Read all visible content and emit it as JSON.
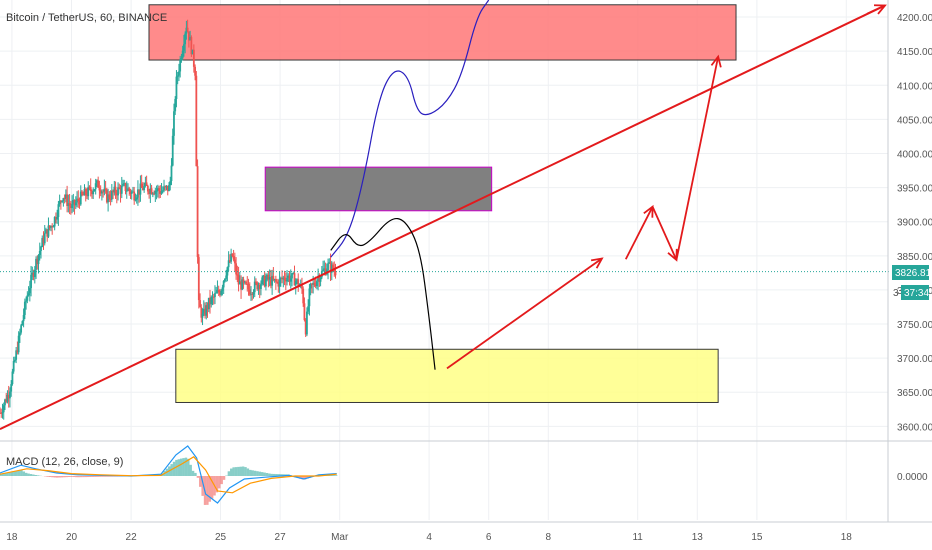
{
  "title": "Bitcoin / TetherUS, 60, BINANCE",
  "macd_label": "MACD (12, 26, close, 9)",
  "price_badge": "3826.81",
  "countdown_badge": "37:34",
  "partial_axis_label": "3",
  "macd_zero_label": "0.0000",
  "colors": {
    "up": "#26a69a",
    "down": "#ef5350",
    "trendline": "#e31a1c",
    "price_line": "#26a69a",
    "macd_line": "#2196f3",
    "signal_line": "#ff9800",
    "red_zone": "#ff7f7f",
    "grey_zone": "#808080",
    "grey_zone_border": "#cc00cc",
    "yellow_zone": "#ffff8d",
    "projection_blue": "#2a1fbf",
    "projection_black": "#000000"
  },
  "chart_data": {
    "type": "candlestick",
    "price_axis": {
      "min": 3580,
      "max": 4225,
      "ticks": [
        3600,
        3650,
        3700,
        3750,
        3800,
        3850,
        3900,
        3950,
        4000,
        4050,
        4100,
        4150,
        4200
      ],
      "tick_labels": [
        "3600.00",
        "3650.00",
        "3700.00",
        "3750.00",
        "3800.00",
        "3850.00",
        "3900.00",
        "3950.00",
        "4000.00",
        "4050.00",
        "4100.00",
        "4150.00",
        "4200.00"
      ]
    },
    "time_axis": {
      "min": 17.6,
      "max": 37.8,
      "labels": [
        {
          "t": 18,
          "label": "18"
        },
        {
          "t": 20,
          "label": "20"
        },
        {
          "t": 22,
          "label": "22"
        },
        {
          "t": 25,
          "label": "25"
        },
        {
          "t": 27,
          "label": "27"
        },
        {
          "t": 29,
          "label": "Mar"
        },
        {
          "t": 32,
          "label": "4"
        },
        {
          "t": 34,
          "label": "6"
        },
        {
          "t": 36,
          "label": "8"
        },
        {
          "t": 39,
          "label": "11"
        },
        {
          "t": 41,
          "label": "13"
        },
        {
          "t": 43,
          "label": "15"
        },
        {
          "t": 46,
          "label": "18"
        }
      ]
    },
    "current_price": 3826.81,
    "price_path": [
      [
        17.6,
        3620
      ],
      [
        17.9,
        3650
      ],
      [
        18.2,
        3720
      ],
      [
        18.5,
        3790
      ],
      [
        18.8,
        3840
      ],
      [
        19.1,
        3880
      ],
      [
        19.4,
        3900
      ],
      [
        19.7,
        3940
      ],
      [
        20.0,
        3920
      ],
      [
        20.3,
        3935
      ],
      [
        20.6,
        3945
      ],
      [
        20.9,
        3955
      ],
      [
        21.2,
        3935
      ],
      [
        21.5,
        3945
      ],
      [
        21.8,
        3950
      ],
      [
        22.1,
        3940
      ],
      [
        22.4,
        3950
      ],
      [
        22.7,
        3948
      ],
      [
        23.0,
        3945
      ],
      [
        23.3,
        3950
      ],
      [
        23.5,
        4100
      ],
      [
        23.7,
        4150
      ],
      [
        23.85,
        4190
      ],
      [
        24.0,
        4160
      ],
      [
        24.15,
        4120
      ],
      [
        24.25,
        3780
      ],
      [
        24.4,
        3760
      ],
      [
        24.6,
        3780
      ],
      [
        24.8,
        3790
      ],
      [
        25.0,
        3800
      ],
      [
        25.2,
        3830
      ],
      [
        25.4,
        3850
      ],
      [
        25.6,
        3810
      ],
      [
        25.8,
        3805
      ],
      [
        26.0,
        3800
      ],
      [
        26.3,
        3810
      ],
      [
        26.6,
        3815
      ],
      [
        26.9,
        3810
      ],
      [
        27.2,
        3820
      ],
      [
        27.5,
        3815
      ],
      [
        27.75,
        3800
      ],
      [
        27.85,
        3740
      ],
      [
        28.0,
        3800
      ],
      [
        28.3,
        3820
      ],
      [
        28.6,
        3835
      ],
      [
        28.9,
        3826.81
      ]
    ],
    "macd": {
      "zero_label": "0.0000",
      "macd_line": [
        [
          17.6,
          0.5
        ],
        [
          18.3,
          1.8
        ],
        [
          18.8,
          1.2
        ],
        [
          19.5,
          0.5
        ],
        [
          20.2,
          0.2
        ],
        [
          21.0,
          0.1
        ],
        [
          22.0,
          0.0
        ],
        [
          23.0,
          0.3
        ],
        [
          23.5,
          3.5
        ],
        [
          23.9,
          5.0
        ],
        [
          24.2,
          3.0
        ],
        [
          24.5,
          -3.0
        ],
        [
          24.9,
          -4.5
        ],
        [
          25.3,
          -2.0
        ],
        [
          25.8,
          -0.5
        ],
        [
          26.5,
          -0.2
        ],
        [
          27.3,
          0.1
        ],
        [
          27.8,
          -0.5
        ],
        [
          28.3,
          0.2
        ],
        [
          28.9,
          0.4
        ]
      ],
      "signal_line": [
        [
          17.6,
          0.3
        ],
        [
          18.5,
          1.2
        ],
        [
          19.2,
          0.9
        ],
        [
          20.0,
          0.4
        ],
        [
          21.0,
          0.2
        ],
        [
          22.0,
          0.05
        ],
        [
          23.0,
          0.1
        ],
        [
          23.7,
          2.0
        ],
        [
          24.1,
          3.2
        ],
        [
          24.5,
          1.0
        ],
        [
          24.9,
          -2.5
        ],
        [
          25.4,
          -2.8
        ],
        [
          26.0,
          -1.2
        ],
        [
          26.7,
          -0.4
        ],
        [
          27.5,
          0.0
        ],
        [
          28.3,
          0.0
        ],
        [
          28.9,
          0.3
        ]
      ],
      "range": [
        -6,
        6
      ]
    },
    "zones": [
      {
        "name": "red",
        "t0": 22.6,
        "t1": 42.3,
        "p0": 4137,
        "p1": 4218
      },
      {
        "name": "grey",
        "t0": 26.5,
        "t1": 34.1,
        "p0": 3916,
        "p1": 3980
      },
      {
        "name": "yellow",
        "t0": 23.5,
        "t1": 41.7,
        "p0": 3635,
        "p1": 3713
      }
    ],
    "trendline": [
      [
        17.6,
        3596
      ],
      [
        47.3,
        4217
      ]
    ],
    "projections": {
      "blue": [
        [
          28.7,
          3848
        ],
        [
          29.3,
          3880
        ],
        [
          29.8,
          3960
        ],
        [
          30.3,
          4080
        ],
        [
          30.8,
          4125
        ],
        [
          31.3,
          4115
        ],
        [
          31.6,
          4060
        ],
        [
          32.0,
          4055
        ],
        [
          32.6,
          4075
        ],
        [
          33.1,
          4115
        ],
        [
          33.6,
          4200
        ],
        [
          34.0,
          4225
        ]
      ],
      "black": [
        [
          28.7,
          3858
        ],
        [
          29.2,
          3888
        ],
        [
          29.6,
          3862
        ],
        [
          30.0,
          3870
        ],
        [
          30.7,
          3906
        ],
        [
          31.2,
          3903
        ],
        [
          31.7,
          3860
        ],
        [
          32.0,
          3760
        ],
        [
          32.2,
          3683
        ]
      ],
      "red_arrows": [
        [
          [
            32.6,
            3685
          ],
          [
            37.8,
            3846
          ]
        ],
        [
          [
            38.6,
            3845
          ],
          [
            39.5,
            3922
          ]
        ],
        [
          [
            39.5,
            3922
          ],
          [
            40.3,
            3844
          ]
        ],
        [
          [
            40.3,
            3844
          ],
          [
            41.7,
            4142
          ]
        ],
        [
          [
            46.7,
            4205
          ],
          [
            47.3,
            4217
          ]
        ]
      ]
    }
  }
}
